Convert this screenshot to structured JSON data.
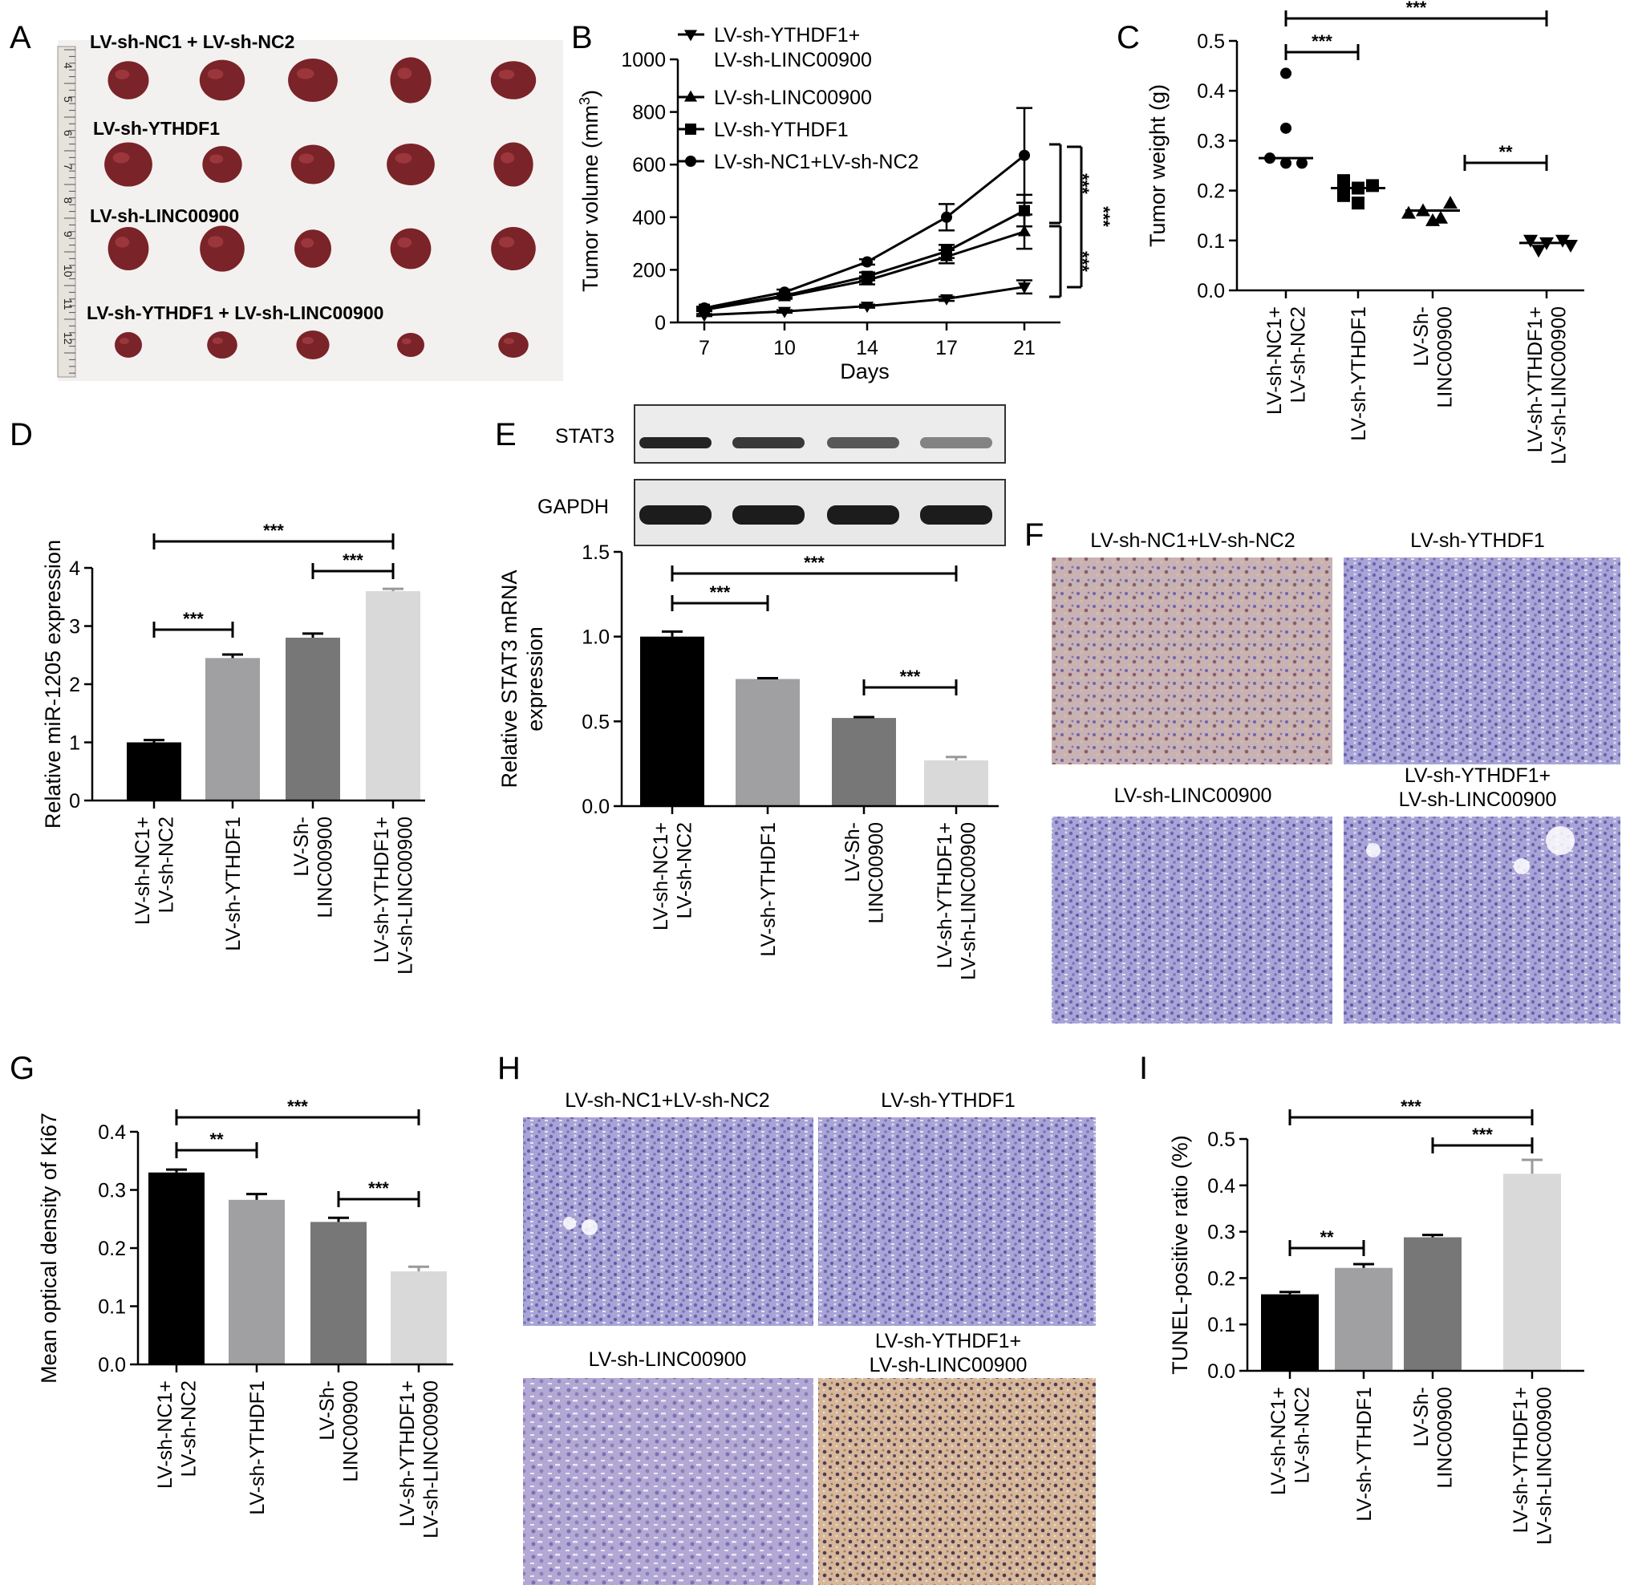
{
  "panel_letters": [
    "A",
    "B",
    "C",
    "D",
    "E",
    "F",
    "G",
    "H",
    "I"
  ],
  "photo_A": {
    "row_labels": [
      "LV-sh-NC1 + LV-sh-NC2",
      "LV-sh-YTHDF1",
      "LV-sh-LINC00900",
      "LV-sh-YTHDF1 + LV-sh-LINC00900"
    ],
    "ruler_numbers": [
      "4",
      "5",
      "6",
      "7",
      "8",
      "9",
      "10",
      "11",
      "12"
    ],
    "tumor_color": "#7a2328"
  },
  "blot_E": {
    "bands": [
      "STAT3",
      "GAPDH"
    ]
  },
  "histology_F": {
    "titles": [
      "LV-sh-NC1+LV-sh-NC2",
      "LV-sh-YTHDF1",
      "LV-sh-LINC00900",
      "LV-sh-YTHDF1+",
      "LV-sh-LINC00900"
    ]
  },
  "histology_H": {
    "titles": [
      "LV-sh-NC1+LV-sh-NC2",
      "LV-sh-YTHDF1",
      "LV-sh-LINC00900",
      "LV-sh-YTHDF1+",
      "LV-sh-LINC00900"
    ]
  },
  "colors": {
    "bar_black": "#000000",
    "bar_mid": "#a0a0a3",
    "bar_dark": "#777777",
    "bar_light": "#d9d9d9",
    "stain_blue": "#8f8cc8",
    "stain_brown": "#c9a98b"
  },
  "chart_data": [
    {
      "panel": "B",
      "type": "line",
      "x": [
        7,
        10,
        14,
        17,
        21
      ],
      "xlabel": "Days",
      "ylabel": "Tumor volume (mm",
      "ylabel_sup": "3",
      "ylabel_end": ")",
      "ylim": [
        0,
        1000
      ],
      "yticks": [
        "0",
        "200",
        "400",
        "600",
        "800",
        "1000"
      ],
      "series": [
        {
          "name": "LV-sh-YTHDF1+",
          "name2": "LV-sh-LINC00900",
          "marker": "triangle-down",
          "values": [
            28,
            42,
            62,
            90,
            135
          ],
          "err": [
            4,
            5,
            6,
            8,
            25
          ]
        },
        {
          "name": "LV-sh-LINC00900",
          "marker": "triangle-up",
          "values": [
            48,
            98,
            160,
            250,
            345
          ],
          "err": [
            5,
            8,
            15,
            25,
            65
          ]
        },
        {
          "name": "LV-sh-YTHDF1",
          "marker": "square",
          "values": [
            50,
            102,
            175,
            270,
            425
          ],
          "err": [
            5,
            8,
            15,
            25,
            60
          ]
        },
        {
          "name": "LV-sh-NC1+LV-sh-NC2",
          "marker": "circle",
          "values": [
            55,
            115,
            230,
            400,
            635
          ],
          "err": [
            5,
            10,
            10,
            50,
            180
          ]
        }
      ],
      "significance": [
        "***",
        "***"
      ]
    },
    {
      "panel": "C",
      "type": "scatter",
      "ylabel": "Tumor weight (g)",
      "ylim": [
        0,
        0.5
      ],
      "yticks": [
        "0.0",
        "0.1",
        "0.2",
        "0.3",
        "0.4",
        "0.5"
      ],
      "categories": [
        "LV-sh-NC1+|LV-sh-NC2",
        "LV-sh-YTHDF1",
        "LV-Sh-|LINC00900",
        "LV-sh-YTHDF1+|LV-sh-LINC00900"
      ],
      "points": [
        [
          0.435,
          0.325,
          0.265,
          0.255,
          0.255
        ],
        [
          0.22,
          0.21,
          0.205,
          0.19,
          0.175
        ],
        [
          0.175,
          0.16,
          0.155,
          0.145,
          0.14
        ],
        [
          0.1,
          0.1,
          0.095,
          0.09,
          0.08
        ]
      ],
      "medians": [
        0.265,
        0.205,
        0.16,
        0.095
      ],
      "significance": [
        "***",
        "***",
        "**"
      ]
    },
    {
      "panel": "D",
      "type": "bar",
      "ylabel": "Relative miR-1205 expression",
      "ylim": [
        0,
        4
      ],
      "yticks": [
        "0",
        "1",
        "2",
        "3",
        "4"
      ],
      "categories": [
        "LV-sh-NC1+|LV-sh-NC2",
        "LV-sh-YTHDF1",
        "LV-Sh-|LINC00900",
        "LV-sh-YTHDF1+|LV-sh-LINC00900"
      ],
      "values": [
        1.0,
        2.45,
        2.8,
        3.6
      ],
      "err": [
        0.04,
        0.06,
        0.07,
        0.04
      ],
      "significance": [
        "***",
        "***",
        "***"
      ]
    },
    {
      "panel": "E",
      "type": "bar",
      "ylabel": "Relative STAT3 mRNA",
      "ylabel2": "expression",
      "ylim": [
        0,
        1.5
      ],
      "yticks": [
        "0.0",
        "0.5",
        "1.0",
        "1.5"
      ],
      "categories": [
        "LV-sh-NC1+|LV-sh-NC2",
        "LV-sh-YTHDF1",
        "LV-Sh-|LINC00900",
        "LV-sh-YTHDF1+|LV-sh-LINC00900"
      ],
      "values": [
        1.0,
        0.75,
        0.52,
        0.27
      ],
      "err": [
        0.03,
        0.005,
        0.005,
        0.02
      ],
      "significance": [
        "***",
        "***",
        "***"
      ]
    },
    {
      "panel": "G",
      "type": "bar",
      "ylabel": "Mean optical density of Ki67",
      "ylim": [
        0,
        0.4
      ],
      "yticks": [
        "0.0",
        "0.1",
        "0.2",
        "0.3",
        "0.4"
      ],
      "categories": [
        "LV-sh-NC1+|LV-sh-NC2",
        "LV-sh-YTHDF1",
        "LV-Sh-|LINC00900",
        "LV-sh-YTHDF1+|LV-sh-LINC00900"
      ],
      "values": [
        0.33,
        0.283,
        0.245,
        0.16
      ],
      "err": [
        0.005,
        0.01,
        0.007,
        0.008
      ],
      "significance": [
        "***",
        "**",
        "***"
      ]
    },
    {
      "panel": "I",
      "type": "bar",
      "ylabel": "TUNEL-positive ratio (%)",
      "ylim": [
        0,
        0.5
      ],
      "yticks": [
        "0.0",
        "0.1",
        "0.2",
        "0.3",
        "0.4",
        "0.5"
      ],
      "categories": [
        "LV-sh-NC1+|LV-sh-NC2",
        "LV-sh-YTHDF1",
        "LV-Sh-|LINC00900",
        "LV-sh-YTHDF1+|LV-sh-LINC00900"
      ],
      "values": [
        0.165,
        0.222,
        0.288,
        0.425
      ],
      "err": [
        0.005,
        0.008,
        0.005,
        0.03
      ],
      "significance": [
        "***",
        "***",
        "**"
      ]
    }
  ]
}
